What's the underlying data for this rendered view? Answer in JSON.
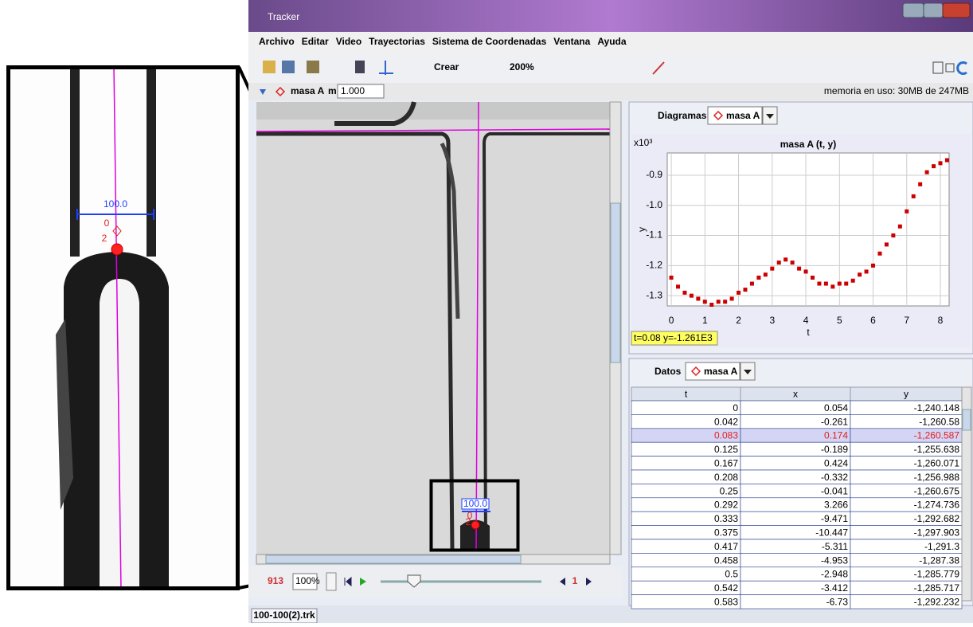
{
  "window": {
    "title": "Tracker"
  },
  "menu": [
    "Archivo",
    "Editar",
    "Video",
    "Trayectorias",
    "Sistema de Coordenadas",
    "Ventana",
    "Ayuda"
  ],
  "toolbar": {
    "create": "Crear",
    "zoom": "200%"
  },
  "track_bar": {
    "track": "masa A",
    "mass_label": "m",
    "mass": "1.000",
    "memory": "memoria en uso: 30MB de 247MB"
  },
  "video": {
    "calibration": "100.0",
    "point_labels": [
      "0",
      "2"
    ]
  },
  "zoom_view": {
    "calibration": "100.0",
    "point_labels": [
      "0",
      "2"
    ]
  },
  "player": {
    "frame": "913",
    "zoom": "100%",
    "step": "1"
  },
  "file_tab": "100-100(2).trk",
  "plot_panel": {
    "tab": "Diagramas",
    "track": "masa A",
    "readout": "t=0.08  y=-1.261E3"
  },
  "chart_data": {
    "type": "scatter",
    "title": "masa A (t, y)",
    "y_scale": "x10³",
    "x_label": "t",
    "y_label": "y",
    "color": "#cc0000",
    "grid": true,
    "x": [
      0,
      0.2,
      0.4,
      0.6,
      0.8,
      1.0,
      1.2,
      1.4,
      1.6,
      1.8,
      2.0,
      2.2,
      2.4,
      2.6,
      2.8,
      3.0,
      3.2,
      3.4,
      3.6,
      3.8,
      4.0,
      4.2,
      4.4,
      4.6,
      4.8,
      5.0,
      5.2,
      5.4,
      5.6,
      5.8,
      6.0,
      6.2,
      6.4,
      6.6,
      6.8,
      7.0,
      7.2,
      7.4,
      7.6,
      7.8,
      8.0,
      8.2
    ],
    "values": [
      -1.24,
      -1.27,
      -1.29,
      -1.3,
      -1.31,
      -1.32,
      -1.33,
      -1.32,
      -1.32,
      -1.31,
      -1.29,
      -1.28,
      -1.26,
      -1.24,
      -1.23,
      -1.21,
      -1.19,
      -1.18,
      -1.19,
      -1.21,
      -1.22,
      -1.24,
      -1.26,
      -1.26,
      -1.27,
      -1.26,
      -1.26,
      -1.25,
      -1.23,
      -1.22,
      -1.2,
      -1.16,
      -1.13,
      -1.1,
      -1.07,
      -1.02,
      -0.97,
      -0.93,
      -0.89,
      -0.87,
      -0.86,
      -0.85
    ],
    "xlim": [
      -0.12,
      8.26
    ],
    "ylim": [
      -1.334,
      -0.826
    ],
    "xticks": [
      0,
      1,
      2,
      3,
      4,
      5,
      6,
      7,
      8
    ],
    "yticks": [
      -0.9,
      {
        "value": -1,
        "label": "-1.0"
      },
      -1.1,
      -1.2,
      -1.3
    ]
  },
  "data_panel": {
    "tab": "Datos",
    "track": "masa A",
    "selected_row": 2,
    "table": {
      "columns": [
        "t",
        "x",
        "y"
      ],
      "rows": [
        [
          "0",
          "0.054",
          "-1,240.148"
        ],
        [
          "0.042",
          "-0.261",
          "-1,260.58"
        ],
        [
          "0.083",
          "0.174",
          "-1,260.587"
        ],
        [
          "0.125",
          "-0.189",
          "-1,255.638"
        ],
        [
          "0.167",
          "0.424",
          "-1,260.071"
        ],
        [
          "0.208",
          "-0.332",
          "-1,256.988"
        ],
        [
          "0.25",
          "-0.041",
          "-1,260.675"
        ],
        [
          "0.292",
          "3.266",
          "-1,274.736"
        ],
        [
          "0.333",
          "-9.471",
          "-1,292.682"
        ],
        [
          "0.375",
          "-10.447",
          "-1,297.903"
        ],
        [
          "0.417",
          "-5.311",
          "-1,291.3"
        ],
        [
          "0.458",
          "-4.953",
          "-1,287.38"
        ],
        [
          "0.5",
          "-2.948",
          "-1,285.779"
        ],
        [
          "0.542",
          "-3.412",
          "-1,285.717"
        ],
        [
          "0.583",
          "-6.73",
          "-1,292.232"
        ]
      ]
    }
  }
}
